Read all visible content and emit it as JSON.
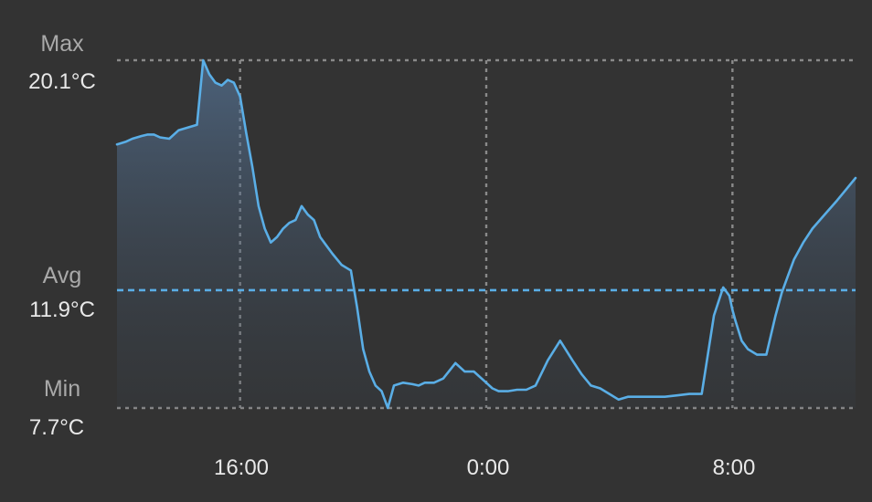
{
  "chart_data": {
    "type": "area",
    "unit": "°C",
    "x_ticks": [
      "16:00",
      "0:00",
      "8:00"
    ],
    "reference_lines": [
      {
        "name": "Max",
        "value": 20.1,
        "label": "20.1°C"
      },
      {
        "name": "Avg",
        "value": 11.9,
        "label": "11.9°C"
      },
      {
        "name": "Min",
        "value": 7.7,
        "label": "7.7°C"
      }
    ],
    "ylim": [
      7.7,
      20.1
    ],
    "xlim": [
      12.0,
      36.0
    ],
    "grid": true,
    "colors": {
      "background": "#333333",
      "line": "#5aaee6",
      "avg_line": "#5aaee6",
      "grid": "#8a8a8a"
    },
    "series": [
      {
        "x": [
          12.0,
          12.3,
          12.5,
          12.8,
          13.0,
          13.2,
          13.4,
          13.7,
          14.0,
          14.3,
          14.6,
          14.8,
          15.0,
          15.2,
          15.4,
          15.6,
          15.8,
          16.0,
          16.2,
          16.4,
          16.6,
          16.8,
          17.0,
          17.2,
          17.4,
          17.6,
          17.8,
          18.0,
          18.2,
          18.4,
          18.6,
          18.8,
          19.0,
          19.3,
          19.6,
          19.8,
          20.0,
          20.2,
          20.4,
          20.6,
          20.8,
          21.0,
          21.3,
          21.6,
          21.8,
          22.0,
          22.3,
          22.6,
          23.0,
          23.3,
          23.6,
          24.0,
          24.2,
          24.4,
          24.7,
          25.0,
          25.3,
          25.6,
          26.0,
          26.4,
          26.8,
          27.1,
          27.4,
          27.7,
          28.0,
          28.3,
          28.6,
          29.0,
          29.4,
          29.8,
          30.2,
          30.6,
          31.0,
          31.4,
          31.7,
          31.9,
          32.0,
          32.1,
          32.3,
          32.5,
          32.8,
          33.1,
          33.4,
          33.6,
          33.8,
          34.0,
          34.3,
          34.6,
          35.0,
          35.4,
          35.7,
          36.0
        ],
        "y": [
          17.1,
          17.2,
          17.3,
          17.4,
          17.45,
          17.45,
          17.35,
          17.3,
          17.6,
          17.7,
          17.8,
          20.1,
          19.6,
          19.3,
          19.2,
          19.4,
          19.3,
          18.8,
          17.5,
          16.3,
          14.9,
          14.1,
          13.6,
          13.8,
          14.1,
          14.3,
          14.4,
          14.9,
          14.6,
          14.4,
          13.8,
          13.5,
          13.2,
          12.8,
          12.6,
          11.3,
          9.8,
          9.0,
          8.5,
          8.3,
          7.7,
          8.5,
          8.6,
          8.55,
          8.5,
          8.6,
          8.6,
          8.75,
          9.3,
          9.0,
          9.0,
          8.6,
          8.4,
          8.3,
          8.3,
          8.35,
          8.35,
          8.5,
          9.4,
          10.1,
          9.4,
          8.9,
          8.5,
          8.4,
          8.2,
          8.0,
          8.1,
          8.1,
          8.1,
          8.1,
          8.15,
          8.2,
          8.2,
          11.0,
          12.0,
          11.7,
          11.2,
          10.8,
          10.1,
          9.8,
          9.6,
          9.6,
          11.0,
          11.8,
          12.4,
          13.0,
          13.6,
          14.1,
          14.6,
          15.1,
          15.5,
          15.9
        ]
      }
    ]
  }
}
